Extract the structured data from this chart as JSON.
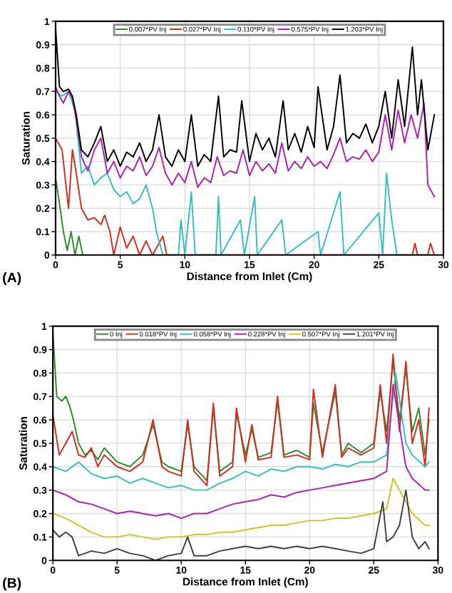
{
  "chart_data": [
    {
      "type": "line",
      "xlabel": "Distance from Inlet (Cm)",
      "ylabel": "Saturation",
      "annotations": [
        "(A)"
      ],
      "xlim": [
        0,
        30
      ],
      "xticks": [
        0,
        5,
        10,
        15,
        20,
        25,
        30
      ],
      "ylim": [
        0,
        1
      ],
      "yticks": [
        0,
        0.1,
        0.2,
        0.3,
        0.4,
        0.5,
        0.6,
        0.7,
        0.8,
        0.9,
        1
      ],
      "grid": true,
      "legend": "top",
      "series": [
        {
          "name": "0.007*PV Inj",
          "color": "#2e8b2e",
          "x": [
            0,
            0.3,
            0.6,
            0.9,
            1.2,
            1.5,
            1.8,
            2.1
          ],
          "values": [
            0.33,
            0.22,
            0.1,
            0.02,
            0.1,
            0.0,
            0.08,
            0.0
          ]
        },
        {
          "name": "0.027*PV Inj",
          "color": "#d62a1e",
          "x": [
            0,
            0.5,
            1,
            1.3,
            1.6,
            2,
            2.5,
            3,
            3.5,
            3.8,
            4.2,
            4.5,
            5,
            5.5,
            6,
            6.5,
            7,
            7.5,
            8.3,
            8.6,
            27.6,
            27.8,
            28,
            28.8,
            29,
            29.3
          ],
          "values": [
            0.5,
            0.45,
            0.2,
            0.45,
            0.35,
            0.2,
            0.15,
            0.16,
            0.13,
            0.17,
            0.1,
            0.0,
            0.12,
            0.03,
            0.08,
            0.0,
            0.06,
            0.0,
            0.08,
            0.0,
            0.0,
            0.05,
            0.0,
            0.0,
            0.05,
            0.0
          ]
        },
        {
          "name": "0.110*PV Inj",
          "color": "#33c0c0",
          "x": [
            0,
            0.5,
            1,
            1.5,
            2,
            2.5,
            3,
            3.5,
            4,
            4.5,
            5,
            5.5,
            6,
            6.5,
            7,
            7.5,
            7.8,
            8.3,
            9.5,
            9.7,
            10,
            10.5,
            10.8,
            12.4,
            12.6,
            12.8,
            14.3,
            14.6,
            15.4,
            15.6,
            17.5,
            17.8,
            20.3,
            20.5,
            22,
            22.3,
            25,
            25.3,
            25.6,
            26,
            26.4,
            29.3
          ],
          "values": [
            0.7,
            0.68,
            0.7,
            0.62,
            0.35,
            0.38,
            0.3,
            0.33,
            0.35,
            0.28,
            0.25,
            0.27,
            0.22,
            0.24,
            0.3,
            0.2,
            0.1,
            0.0,
            0.0,
            0.15,
            0.0,
            0.27,
            0.0,
            0.0,
            0.25,
            0.0,
            0.15,
            0.0,
            0.25,
            0.0,
            0.15,
            0.0,
            0.1,
            0.0,
            0.27,
            0.0,
            0.18,
            0.0,
            0.35,
            0.15,
            0.0,
            0.0
          ]
        },
        {
          "name": "0.575*PV Inj",
          "color": "#b020b0",
          "x": [
            0,
            0.3,
            0.6,
            1,
            1.3,
            1.6,
            2,
            2.5,
            3,
            3.5,
            4,
            4.5,
            5,
            5.5,
            6,
            6.5,
            7,
            7.5,
            8,
            8.5,
            9,
            9.5,
            10,
            10.5,
            11,
            11.5,
            12,
            12.5,
            13,
            13.5,
            14,
            14.5,
            15,
            15.5,
            16,
            16.5,
            17,
            17.5,
            18,
            18.5,
            19,
            19.5,
            20,
            20.5,
            21,
            21.5,
            22,
            22.5,
            23,
            23.5,
            24,
            24.5,
            25,
            25.5,
            26,
            26.5,
            27,
            27.5,
            28,
            28.5,
            28.8,
            29.3
          ],
          "values": [
            0.72,
            0.68,
            0.65,
            0.7,
            0.67,
            0.58,
            0.42,
            0.36,
            0.45,
            0.5,
            0.35,
            0.4,
            0.33,
            0.38,
            0.36,
            0.42,
            0.34,
            0.38,
            0.46,
            0.35,
            0.3,
            0.35,
            0.31,
            0.4,
            0.29,
            0.33,
            0.31,
            0.42,
            0.34,
            0.36,
            0.35,
            0.45,
            0.34,
            0.4,
            0.36,
            0.39,
            0.35,
            0.48,
            0.36,
            0.4,
            0.37,
            0.42,
            0.38,
            0.4,
            0.37,
            0.43,
            0.5,
            0.4,
            0.42,
            0.41,
            0.45,
            0.4,
            0.44,
            0.6,
            0.45,
            0.62,
            0.48,
            0.6,
            0.5,
            0.65,
            0.3,
            0.25
          ]
        },
        {
          "name": "1.203*PV Inj",
          "color": "#000000",
          "x": [
            0,
            0.3,
            0.6,
            1,
            1.3,
            1.6,
            2,
            2.5,
            3,
            3.5,
            4,
            4.5,
            5,
            5.5,
            6,
            6.5,
            7,
            7.5,
            8,
            8.5,
            9,
            9.5,
            10,
            10.5,
            11,
            11.5,
            12,
            12.6,
            13,
            13.5,
            14,
            14.4,
            15,
            15.5,
            16,
            16.5,
            17,
            17.6,
            18,
            18.5,
            19,
            19.5,
            20,
            20.3,
            21,
            21.5,
            22,
            22.5,
            23,
            23.5,
            24,
            24.5,
            25,
            25.5,
            26,
            26.5,
            27,
            27.6,
            28,
            28.3,
            28.8,
            29.3
          ],
          "values": [
            0.97,
            0.72,
            0.7,
            0.71,
            0.68,
            0.6,
            0.45,
            0.42,
            0.48,
            0.55,
            0.4,
            0.45,
            0.38,
            0.44,
            0.42,
            0.48,
            0.4,
            0.45,
            0.6,
            0.42,
            0.38,
            0.45,
            0.4,
            0.6,
            0.38,
            0.43,
            0.4,
            0.68,
            0.42,
            0.45,
            0.44,
            0.66,
            0.4,
            0.52,
            0.45,
            0.5,
            0.42,
            0.66,
            0.45,
            0.52,
            0.44,
            0.55,
            0.46,
            0.72,
            0.45,
            0.55,
            0.77,
            0.48,
            0.52,
            0.5,
            0.56,
            0.48,
            0.55,
            0.7,
            0.5,
            0.75,
            0.55,
            0.89,
            0.6,
            0.75,
            0.45,
            0.6
          ]
        }
      ]
    },
    {
      "type": "line",
      "xlabel": "Distance from Inlet (Cm)",
      "ylabel": "Saturation",
      "annotations": [
        "(B)"
      ],
      "xlim": [
        0,
        30
      ],
      "xticks": [
        0,
        5,
        10,
        15,
        20,
        25,
        30
      ],
      "ylim": [
        0,
        1
      ],
      "yticks": [
        0,
        0.1,
        0.2,
        0.3,
        0.4,
        0.5,
        0.6,
        0.7,
        0.8,
        0.9,
        1
      ],
      "grid": true,
      "legend": "top",
      "series": [
        {
          "name": "0 Inj",
          "color": "#2e8b2e",
          "x": [
            0,
            0.3,
            0.7,
            1,
            1.3,
            1.6,
            2,
            2.5,
            3,
            3.5,
            4,
            5,
            6,
            7,
            7.8,
            8.5,
            9,
            10,
            10.5,
            11,
            12,
            12.5,
            13,
            14,
            14.3,
            15,
            15.5,
            16,
            17,
            17.5,
            18,
            19,
            20,
            20.3,
            21,
            22,
            22.5,
            23,
            24,
            25,
            25.5,
            26,
            26.5,
            27,
            27.5,
            28,
            28.5,
            29,
            29.3
          ],
          "values": [
            0.97,
            0.7,
            0.68,
            0.7,
            0.66,
            0.6,
            0.5,
            0.45,
            0.47,
            0.43,
            0.48,
            0.42,
            0.4,
            0.45,
            0.58,
            0.42,
            0.4,
            0.38,
            0.58,
            0.4,
            0.34,
            0.65,
            0.38,
            0.42,
            0.63,
            0.45,
            0.56,
            0.44,
            0.46,
            0.68,
            0.45,
            0.47,
            0.44,
            0.67,
            0.46,
            0.72,
            0.45,
            0.5,
            0.46,
            0.5,
            0.72,
            0.55,
            0.85,
            0.6,
            0.82,
            0.55,
            0.65,
            0.45,
            0.6
          ]
        },
        {
          "name": "0.018*PV Inj",
          "color": "#d62a1e",
          "x": [
            0,
            0.5,
            1,
            1.5,
            2,
            2.5,
            3,
            3.5,
            4,
            5,
            6,
            7,
            7.8,
            8.5,
            9,
            10,
            10.5,
            11,
            12,
            12.5,
            13,
            14,
            14.3,
            15,
            15.5,
            16,
            17,
            17.5,
            18,
            19,
            20,
            20.3,
            21,
            22,
            22.5,
            23,
            24,
            25,
            25.5,
            26,
            26.5,
            27,
            27.5,
            28,
            28.5,
            29,
            29.3
          ],
          "values": [
            0.62,
            0.45,
            0.5,
            0.55,
            0.45,
            0.44,
            0.48,
            0.4,
            0.45,
            0.4,
            0.38,
            0.42,
            0.6,
            0.4,
            0.38,
            0.36,
            0.6,
            0.38,
            0.32,
            0.67,
            0.36,
            0.4,
            0.65,
            0.42,
            0.58,
            0.43,
            0.44,
            0.7,
            0.44,
            0.45,
            0.43,
            0.73,
            0.44,
            0.75,
            0.44,
            0.48,
            0.45,
            0.48,
            0.75,
            0.5,
            0.88,
            0.55,
            0.85,
            0.5,
            0.6,
            0.4,
            0.65
          ]
        },
        {
          "name": "0.058*PV Inj",
          "color": "#33c0c0",
          "x": [
            0,
            1,
            2,
            3,
            4,
            5,
            6,
            7,
            8,
            9,
            10,
            11,
            12,
            13,
            14,
            15,
            16,
            17,
            18,
            19,
            20,
            21,
            22,
            23,
            24,
            25,
            26,
            26.7,
            27.5,
            28,
            29,
            29.3
          ],
          "values": [
            0.4,
            0.38,
            0.42,
            0.37,
            0.35,
            0.36,
            0.33,
            0.35,
            0.33,
            0.31,
            0.32,
            0.3,
            0.3,
            0.33,
            0.35,
            0.38,
            0.36,
            0.39,
            0.38,
            0.4,
            0.4,
            0.39,
            0.41,
            0.4,
            0.42,
            0.42,
            0.45,
            0.8,
            0.5,
            0.45,
            0.4,
            0.42
          ]
        },
        {
          "name": "0.228*PV Inj",
          "color": "#b020b0",
          "x": [
            0,
            1,
            2,
            3,
            4,
            5,
            6,
            7,
            8,
            9,
            10,
            11,
            12,
            13,
            14,
            15,
            16,
            17,
            18,
            19,
            20,
            21,
            22,
            23,
            24,
            25,
            26,
            26.5,
            27.5,
            28,
            29,
            29.3
          ],
          "values": [
            0.3,
            0.28,
            0.25,
            0.24,
            0.22,
            0.2,
            0.21,
            0.2,
            0.19,
            0.2,
            0.18,
            0.2,
            0.2,
            0.22,
            0.24,
            0.25,
            0.26,
            0.28,
            0.27,
            0.29,
            0.3,
            0.31,
            0.32,
            0.33,
            0.34,
            0.35,
            0.38,
            0.75,
            0.4,
            0.35,
            0.3,
            0.3
          ]
        },
        {
          "name": "0.507*PV Inj",
          "color": "#c8c820",
          "x": [
            0,
            1,
            2,
            3,
            4,
            5,
            6,
            7,
            8,
            9,
            10,
            11,
            12,
            13,
            14,
            15,
            16,
            17,
            18,
            19,
            20,
            21,
            22,
            23,
            24,
            25,
            26,
            26.5,
            27.5,
            28,
            29,
            29.3
          ],
          "values": [
            0.2,
            0.18,
            0.15,
            0.12,
            0.1,
            0.1,
            0.11,
            0.1,
            0.09,
            0.1,
            0.1,
            0.11,
            0.11,
            0.12,
            0.12,
            0.13,
            0.14,
            0.15,
            0.15,
            0.16,
            0.17,
            0.17,
            0.18,
            0.18,
            0.19,
            0.2,
            0.22,
            0.35,
            0.25,
            0.2,
            0.15,
            0.15
          ]
        },
        {
          "name": "1.201*PV Inj",
          "color": "#404040",
          "x": [
            0,
            0.5,
            1,
            1.5,
            2,
            3,
            4,
            5,
            6,
            7,
            8,
            9,
            10,
            10.5,
            11,
            12,
            13,
            14,
            15,
            16,
            17,
            18,
            19,
            20,
            21,
            22,
            23,
            24,
            25,
            25.7,
            26,
            26.5,
            27,
            27.5,
            28,
            28.5,
            29,
            29.3
          ],
          "values": [
            0.13,
            0.1,
            0.12,
            0.1,
            0.02,
            0.04,
            0.03,
            0.05,
            0.03,
            0.02,
            0.0,
            0.02,
            0.03,
            0.1,
            0.02,
            0.02,
            0.04,
            0.05,
            0.06,
            0.05,
            0.06,
            0.05,
            0.06,
            0.05,
            0.06,
            0.05,
            0.04,
            0.03,
            0.05,
            0.25,
            0.08,
            0.1,
            0.15,
            0.3,
            0.1,
            0.05,
            0.08,
            0.05
          ]
        }
      ]
    }
  ]
}
